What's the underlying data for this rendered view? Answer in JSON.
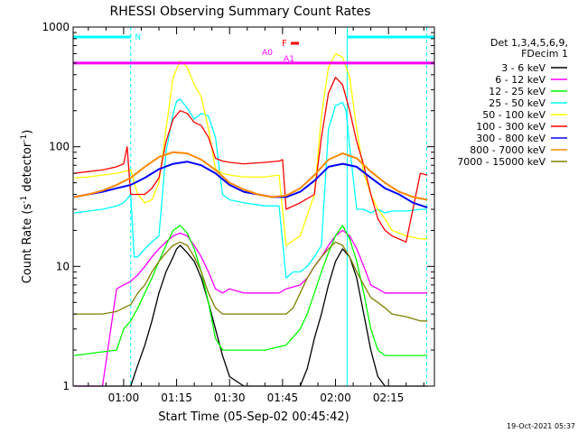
{
  "chart_data": {
    "type": "line",
    "title": "RHESSI Observing Summary Count Rates",
    "xlabel": "Start Time (05-Sep-02 00:45:42)",
    "ylabel_main": "Count Rate (s",
    "ylabel_sup1": "-1",
    "ylabel_mid": " detector",
    "ylabel_sup2": "-1",
    "ylabel_end": ")",
    "y_scale": "log",
    "ylim": [
      1,
      1000
    ],
    "xlim_minutes": [
      45.7,
      148
    ],
    "y_ticks": [
      {
        "value": 1,
        "label": "1"
      },
      {
        "value": 10,
        "label": "10"
      },
      {
        "value": 100,
        "label": "100"
      },
      {
        "value": 1000,
        "label": "1000"
      }
    ],
    "x_ticks": [
      {
        "value": 60,
        "label": "01:00"
      },
      {
        "value": 75,
        "label": "01:15"
      },
      {
        "value": 90,
        "label": "01:30"
      },
      {
        "value": 105,
        "label": "01:45"
      },
      {
        "value": 120,
        "label": "02:00"
      },
      {
        "value": 135,
        "label": "02:15"
      }
    ],
    "legend_header": [
      "Det 1,3,4,5,6,9,",
      "FDecim 1"
    ],
    "legend_placement": "right",
    "timestamp": "19-Oct-2021 05:37",
    "annotations": {
      "night_label": "N",
      "flare_label": "F",
      "attenuator_labels": [
        "A0",
        "A1"
      ],
      "attenuator_level": 500,
      "night_intervals": [
        [
          45.7,
          62
        ],
        [
          123.3,
          148
        ]
      ],
      "saa_marker": 145.8
    },
    "series": [
      {
        "name": "3 - 6 keV",
        "color": "#000000",
        "x": [
          46,
          52,
          60,
          62,
          64,
          66,
          68,
          70,
          72,
          74,
          75,
          76,
          78,
          80,
          82,
          84,
          86,
          88,
          90,
          94,
          96,
          100,
          104,
          106,
          110,
          112,
          114,
          116,
          118,
          120,
          122,
          124,
          126,
          128,
          130,
          132,
          134,
          136,
          140,
          144,
          146
        ],
        "y": [
          1,
          1,
          1,
          1,
          1.5,
          2.2,
          3.5,
          6,
          9,
          12,
          14,
          15,
          13,
          11,
          8,
          5,
          3,
          1.8,
          1.2,
          1,
          1,
          1,
          1,
          1,
          1,
          1.4,
          2.5,
          4,
          7,
          11,
          14,
          12,
          8,
          4,
          2,
          1.2,
          1,
          1,
          1,
          1,
          1
        ]
      },
      {
        "name": "6 - 12 keV",
        "color": "#ff00ff",
        "x": [
          46,
          50,
          54,
          58,
          60,
          62,
          64,
          66,
          68,
          70,
          72,
          74,
          76,
          78,
          80,
          82,
          84,
          86,
          88,
          90,
          94,
          100,
          104,
          106,
          110,
          112,
          114,
          116,
          118,
          120,
          122,
          124,
          126,
          128,
          130,
          132,
          134,
          136,
          140,
          144,
          146
        ],
        "y": [
          1,
          1,
          1,
          6.5,
          7,
          7.5,
          8.5,
          10,
          12,
          14,
          16,
          18,
          19,
          18,
          15,
          12,
          9,
          6.5,
          6,
          6.5,
          6,
          6,
          6,
          6.5,
          7,
          8,
          10,
          12,
          15,
          18,
          20,
          18,
          14,
          10,
          7,
          6.5,
          6,
          6,
          6,
          6,
          6
        ]
      },
      {
        "name": "12 - 25 keV",
        "color": "#00ff00",
        "x": [
          46,
          52,
          58,
          60,
          62,
          64,
          66,
          68,
          70,
          72,
          74,
          76,
          78,
          80,
          82,
          84,
          86,
          88,
          90,
          94,
          100,
          106,
          110,
          112,
          114,
          116,
          118,
          120,
          122,
          124,
          126,
          128,
          130,
          132,
          134,
          136,
          140,
          146
        ],
        "y": [
          1.8,
          1.9,
          2,
          3,
          3.5,
          4.5,
          6,
          8,
          11,
          15,
          20,
          22,
          19,
          14,
          9,
          5,
          2.5,
          2,
          2,
          2,
          2,
          2.2,
          3,
          4,
          6,
          9,
          13,
          18,
          22,
          17,
          11,
          6,
          3,
          2,
          1.8,
          1.8,
          1.8,
          1.8
        ]
      },
      {
        "name": "25 - 50 keV",
        "color": "#00ffff",
        "x": [
          46,
          50,
          54,
          58,
          60,
          62,
          63,
          64,
          66,
          68,
          70,
          72,
          74,
          75,
          76,
          78,
          80,
          82,
          84,
          86,
          88,
          90,
          94,
          100,
          104,
          106,
          108,
          110,
          112,
          114,
          116,
          118,
          120,
          122,
          123,
          124,
          126,
          128,
          130,
          132,
          134,
          136,
          140,
          144,
          146
        ],
        "y": [
          28,
          29,
          30,
          32,
          34,
          40,
          12,
          12,
          14,
          16,
          18,
          90,
          190,
          240,
          250,
          210,
          170,
          190,
          180,
          120,
          40,
          36,
          34,
          32,
          32,
          8,
          9,
          9,
          10,
          12,
          15,
          140,
          220,
          235,
          200,
          100,
          30,
          30,
          28,
          30,
          28,
          29,
          29,
          30,
          30
        ]
      },
      {
        "name": "50 - 100 keV",
        "color": "#ffff00",
        "x": [
          46,
          50,
          54,
          58,
          60,
          62,
          64,
          66,
          68,
          70,
          72,
          74,
          76,
          78,
          80,
          82,
          84,
          86,
          88,
          90,
          94,
          100,
          104,
          106,
          110,
          114,
          116,
          118,
          120,
          122,
          124,
          126,
          128,
          130,
          132,
          134,
          136,
          140,
          144,
          146
        ],
        "y": [
          55,
          56,
          58,
          60,
          62,
          64,
          40,
          34,
          36,
          50,
          140,
          380,
          520,
          460,
          330,
          260,
          140,
          65,
          60,
          58,
          56,
          56,
          58,
          15,
          18,
          40,
          180,
          460,
          600,
          560,
          380,
          140,
          60,
          40,
          30,
          25,
          20,
          18,
          17,
          17
        ]
      },
      {
        "name": "100 - 300 keV",
        "color": "#ff0000",
        "x": [
          46,
          50,
          54,
          58,
          60,
          61,
          62,
          64,
          66,
          68,
          70,
          72,
          74,
          76,
          78,
          80,
          82,
          84,
          86,
          88,
          90,
          94,
          100,
          104,
          105,
          106,
          110,
          114,
          116,
          118,
          120,
          122,
          124,
          126,
          128,
          130,
          132,
          134,
          136,
          140,
          144,
          146
        ],
        "y": [
          60,
          62,
          64,
          68,
          72,
          100,
          40,
          40,
          40,
          45,
          55,
          110,
          170,
          200,
          190,
          160,
          150,
          120,
          80,
          76,
          74,
          72,
          74,
          76,
          78,
          30,
          34,
          40,
          120,
          280,
          380,
          330,
          200,
          110,
          70,
          40,
          25,
          20,
          18,
          16,
          60,
          58
        ]
      },
      {
        "name": "300 - 800 keV",
        "color": "#0000ff",
        "x": [
          46,
          50,
          54,
          58,
          62,
          66,
          70,
          74,
          78,
          82,
          86,
          90,
          94,
          98,
          102,
          106,
          110,
          114,
          118,
          122,
          126,
          130,
          134,
          138,
          142,
          146
        ],
        "y": [
          38,
          40,
          42,
          45,
          48,
          55,
          65,
          72,
          75,
          70,
          60,
          48,
          42,
          40,
          38,
          38,
          42,
          52,
          68,
          72,
          68,
          55,
          45,
          40,
          34,
          31
        ]
      },
      {
        "name": "800 - 7000 keV",
        "color": "#ff8800",
        "x": [
          46,
          50,
          54,
          58,
          62,
          66,
          70,
          74,
          78,
          82,
          86,
          90,
          94,
          98,
          102,
          106,
          110,
          114,
          118,
          122,
          126,
          130,
          134,
          138,
          142,
          146
        ],
        "y": [
          38,
          40,
          43,
          48,
          55,
          68,
          82,
          90,
          88,
          78,
          64,
          50,
          44,
          40,
          38,
          39,
          45,
          58,
          78,
          88,
          80,
          62,
          50,
          42,
          38,
          36
        ]
      },
      {
        "name": "7000 - 15000 keV",
        "color": "#808000",
        "x": [
          46,
          50,
          54,
          58,
          60,
          62,
          64,
          66,
          68,
          70,
          72,
          74,
          76,
          78,
          80,
          82,
          84,
          86,
          88,
          90,
          94,
          100,
          104,
          106,
          108,
          110,
          112,
          114,
          116,
          118,
          120,
          122,
          124,
          126,
          128,
          130,
          132,
          134,
          136,
          140,
          144,
          146
        ],
        "y": [
          4,
          4,
          4,
          4.2,
          4.5,
          4.8,
          6,
          7,
          9,
          11,
          13,
          15,
          16,
          15,
          12,
          9,
          6,
          4.5,
          4,
          4,
          4,
          4,
          4,
          4,
          4.5,
          6,
          8,
          10,
          12,
          14,
          16,
          15,
          12,
          9,
          7,
          5.5,
          5,
          4.5,
          4,
          3.8,
          3.5,
          3.5
        ]
      }
    ]
  }
}
